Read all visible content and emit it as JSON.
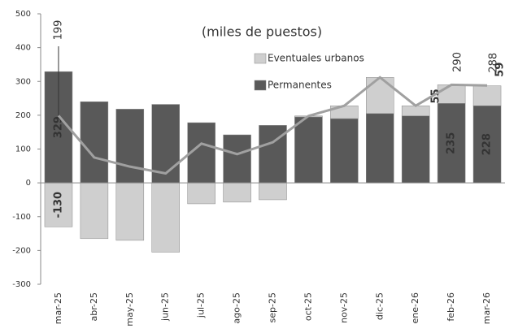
{
  "chart_data": {
    "type": "bar",
    "stacked": true,
    "subtitle": "(miles de puestos)",
    "categories": [
      "mar-25",
      "abr-25",
      "may-25",
      "jun-25",
      "jul-25",
      "ago-25",
      "sep-25",
      "oct-25",
      "nov-25",
      "dic-25",
      "ene-26",
      "feb-26",
      "mar-26"
    ],
    "series": [
      {
        "name": "Permanentes",
        "color": "#595959",
        "values": [
          329,
          240,
          218,
          232,
          178,
          142,
          170,
          195,
          190,
          205,
          198,
          235,
          228
        ],
        "labeled_points": [
          0,
          11,
          12
        ]
      },
      {
        "name": "Eventuales urbanos",
        "color": "#cfcfcf",
        "values": [
          -130,
          -165,
          -170,
          -205,
          -62,
          -57,
          -50,
          3,
          38,
          107,
          30,
          55,
          59
        ],
        "labeled_points": [
          0,
          11,
          12
        ]
      }
    ],
    "line": {
      "color": "#a0a0a0",
      "values": [
        199,
        75,
        48,
        28,
        116,
        85,
        120,
        198,
        228,
        312,
        228,
        290,
        288
      ],
      "labeled_points": [
        0,
        11,
        12
      ]
    },
    "ylim": [
      -300,
      500
    ],
    "yticks": [
      -300,
      -200,
      -100,
      0,
      100,
      200,
      300,
      400,
      500
    ],
    "grid": false
  }
}
